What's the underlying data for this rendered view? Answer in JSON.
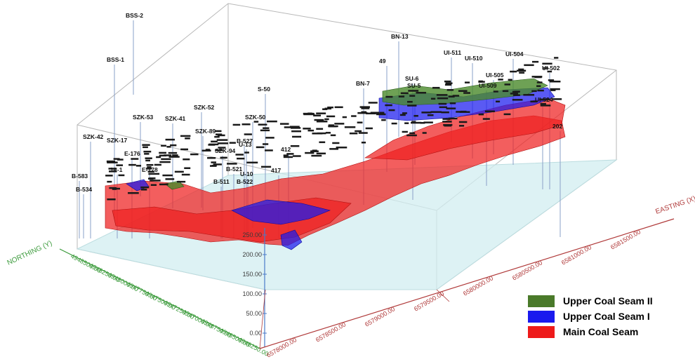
{
  "axes": {
    "northing_title": "NORTHING (Y)",
    "easting_title": "EASTING (X)",
    "northing_ticks": [
      "4948500.00",
      "4948250.00",
      "4948000.00",
      "4947750.00",
      "4947500.00",
      "4947250.00",
      "4947000.00",
      "4946750.00",
      "4946500.00",
      "4946250.00"
    ],
    "easting_ticks": [
      "6578000.00",
      "6578500.00",
      "6579000.00",
      "6579500.00",
      "6580000.00",
      "6580500.00",
      "6581000.00",
      "6581500.00"
    ],
    "elevation_ticks": [
      "250.00",
      "200.00",
      "150.00",
      "100.00",
      "50.00",
      "0.00"
    ],
    "elevation_bottom": "0.00"
  },
  "boreholes": [
    "BSS-2",
    "BSS-1",
    "BN-13",
    "49",
    "BN-7",
    "SZK-53",
    "SZK-41",
    "SZK-52",
    "SZK-50",
    "SZK-42",
    "SZK-17",
    "E-176",
    "E-178",
    "B-534",
    "B-583",
    "B-527",
    "B-521",
    "B-522",
    "B-511",
    "U-13",
    "U-10",
    "412",
    "417",
    "S-50",
    "SU-6",
    "SU-5",
    "UI-511",
    "UI-510",
    "UI-504",
    "UI-502",
    "UI-505",
    "UI-524",
    "UI-509",
    "202",
    "JA-1",
    "SZK-89",
    "SZK-94"
  ],
  "legend": [
    {
      "label": "Upper Coal Seam II",
      "color": "#4a7a2a"
    },
    {
      "label": "Upper Coal Seam I",
      "color": "#1a1aee"
    },
    {
      "label": "Main Coal Seam",
      "color": "#ee1a1a"
    }
  ],
  "colors": {
    "floor": "#d2eef0",
    "northing_axis": "#3a9a3a",
    "easting_axis": "#b03a3a",
    "frame": "#b8b8b8"
  }
}
